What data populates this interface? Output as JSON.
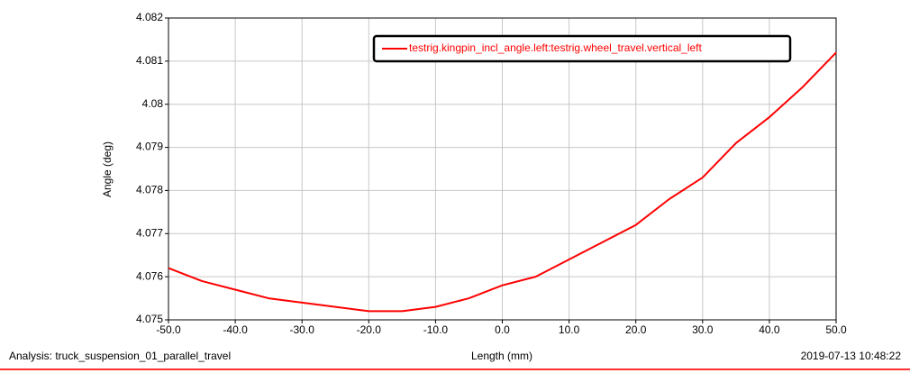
{
  "chart_data": {
    "type": "line",
    "y_label": "Angle (deg)",
    "x_label": "Length (mm)",
    "footer_left": "Analysis:  truck_suspension_01_parallel_travel",
    "footer_right": "2019-07-13 10:48:22",
    "x": [
      -50,
      -45,
      -40,
      -35,
      -30,
      -25,
      -20,
      -15,
      -10,
      -5,
      0,
      5,
      10,
      15,
      20,
      25,
      30,
      35,
      40,
      45,
      50
    ],
    "series": [
      {
        "name": "testrig.kingpin_incl_angle.left:testrig.wheel_travel.vertical_left",
        "color": "#ff0000",
        "values": [
          4.0762,
          4.0759,
          4.0757,
          4.0755,
          4.0754,
          4.0753,
          4.0752,
          4.0752,
          4.0753,
          4.0755,
          4.0758,
          4.076,
          4.0764,
          4.0768,
          4.0772,
          4.0778,
          4.0783,
          4.0791,
          4.0797,
          4.0804,
          4.0812
        ]
      }
    ],
    "xlim": [
      -50,
      50
    ],
    "xticks": [
      {
        "value": -50,
        "label": "-50.0"
      },
      {
        "value": -40,
        "label": "-40.0"
      },
      {
        "value": -30,
        "label": "-30.0"
      },
      {
        "value": -20,
        "label": "-20.0"
      },
      {
        "value": -10,
        "label": "-10.0"
      },
      {
        "value": 0,
        "label": "0.0"
      },
      {
        "value": 10,
        "label": "10.0"
      },
      {
        "value": 20,
        "label": "20.0"
      },
      {
        "value": 30,
        "label": "30.0"
      },
      {
        "value": 40,
        "label": "40.0"
      },
      {
        "value": 50,
        "label": "50.0"
      }
    ],
    "ylim": [
      4.075,
      4.082
    ],
    "yticks": [
      4.075,
      4.076,
      4.077,
      4.078,
      4.079,
      4.08,
      4.081,
      4.082
    ],
    "grid": true
  }
}
